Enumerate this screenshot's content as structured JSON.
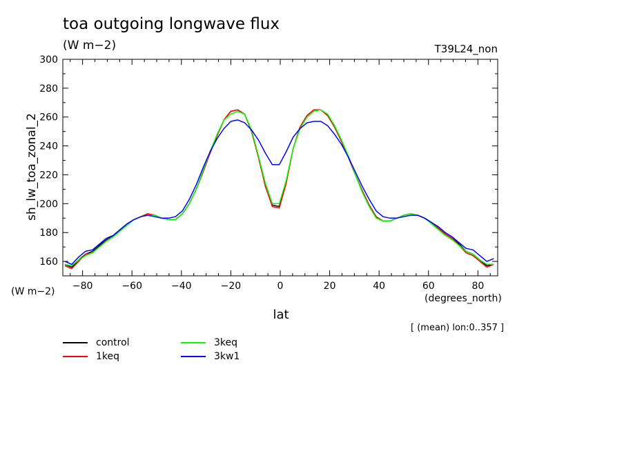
{
  "chart_data": {
    "type": "line",
    "title": "toa outgoing longwave flux",
    "subtitle": "(W m−2)",
    "run_label": "T39L24_non",
    "ylabel": "sh_lw_toa_zonal_2",
    "yunit": "(W m−2)",
    "xlabel": "lat",
    "xunit": "(degrees_north)",
    "note": "[ (mean) lon:0..357 ]",
    "xlim": [
      -88,
      88
    ],
    "ylim": [
      150,
      300
    ],
    "xticks": [
      -80,
      -60,
      -40,
      -20,
      0,
      20,
      40,
      60,
      80
    ],
    "xtick_labels": [
      "−80",
      "−60",
      "−40",
      "−20",
      "0",
      "20",
      "40",
      "60",
      "80"
    ],
    "yticks": [
      160,
      180,
      200,
      220,
      240,
      260,
      280,
      300
    ],
    "ytick_labels": [
      "160",
      "180",
      "200",
      "220",
      "240",
      "260",
      "280",
      "300"
    ],
    "x": [
      -87.2,
      -84.4,
      -81.6,
      -78.8,
      -76.0,
      -73.2,
      -70.4,
      -67.6,
      -64.8,
      -62.0,
      -59.2,
      -56.4,
      -53.6,
      -50.8,
      -48.0,
      -45.2,
      -42.4,
      -39.6,
      -36.8,
      -34.0,
      -31.2,
      -28.4,
      -25.6,
      -22.8,
      -20.0,
      -17.2,
      -14.4,
      -11.6,
      -8.8,
      -6.0,
      -3.2,
      -0.4,
      2.4,
      5.2,
      8.0,
      10.8,
      13.6,
      16.4,
      19.2,
      22.0,
      24.8,
      27.6,
      30.4,
      33.2,
      36.0,
      38.8,
      41.6,
      44.4,
      47.2,
      50.0,
      52.8,
      55.6,
      58.4,
      61.2,
      64.0,
      66.8,
      69.6,
      72.4,
      75.2,
      78.0,
      80.8,
      83.6,
      86.4
    ],
    "series": [
      {
        "name": "control",
        "color": "#000000",
        "values": [
          158,
          156,
          161,
          165,
          167,
          171,
          175,
          178,
          182,
          186,
          189,
          191,
          193,
          192,
          190,
          189,
          189,
          193,
          200,
          210,
          222,
          235,
          247,
          258,
          264,
          265,
          262,
          250,
          232,
          212,
          199,
          198,
          215,
          238,
          253,
          261,
          265,
          265,
          261,
          253,
          243,
          232,
          220,
          209,
          199,
          191,
          188,
          188,
          190,
          192,
          193,
          192,
          190,
          187,
          183,
          179,
          176,
          172,
          167,
          165,
          161,
          157,
          158
        ]
      },
      {
        "name": "1keq",
        "color": "#ff0000",
        "values": [
          157,
          155,
          160,
          165,
          166,
          170,
          174,
          177,
          182,
          186,
          189,
          191,
          193,
          192,
          190,
          189,
          189,
          193,
          200,
          210,
          222,
          235,
          247,
          258,
          264,
          265,
          262,
          250,
          232,
          212,
          198,
          197,
          214,
          238,
          253,
          261,
          265,
          265,
          261,
          253,
          243,
          232,
          220,
          209,
          199,
          191,
          188,
          188,
          190,
          192,
          193,
          192,
          190,
          187,
          183,
          179,
          176,
          171,
          166,
          164,
          160,
          156,
          158
        ]
      },
      {
        "name": "3keq",
        "color": "#00ff00",
        "values": [
          158,
          157,
          161,
          164,
          166,
          170,
          174,
          177,
          181,
          185,
          189,
          191,
          192,
          192,
          190,
          189,
          189,
          193,
          200,
          210,
          223,
          236,
          248,
          258,
          262,
          264,
          262,
          251,
          233,
          214,
          200,
          200,
          216,
          238,
          252,
          260,
          264,
          265,
          262,
          254,
          244,
          233,
          220,
          208,
          198,
          190,
          188,
          188,
          190,
          192,
          193,
          192,
          190,
          186,
          182,
          178,
          175,
          171,
          167,
          165,
          161,
          158,
          158
        ]
      },
      {
        "name": "3kw1",
        "color": "#0000ff",
        "values": [
          160,
          158,
          163,
          167,
          168,
          172,
          176,
          178,
          182,
          186,
          189,
          191,
          192,
          191,
          190,
          190,
          191,
          195,
          203,
          213,
          225,
          236,
          245,
          252,
          257,
          258,
          256,
          251,
          244,
          235,
          227,
          227,
          236,
          246,
          252,
          256,
          257,
          257,
          254,
          248,
          241,
          232,
          222,
          212,
          203,
          195,
          191,
          190,
          190,
          191,
          192,
          192,
          190,
          187,
          184,
          180,
          177,
          173,
          169,
          168,
          164,
          160,
          162
        ]
      }
    ]
  }
}
